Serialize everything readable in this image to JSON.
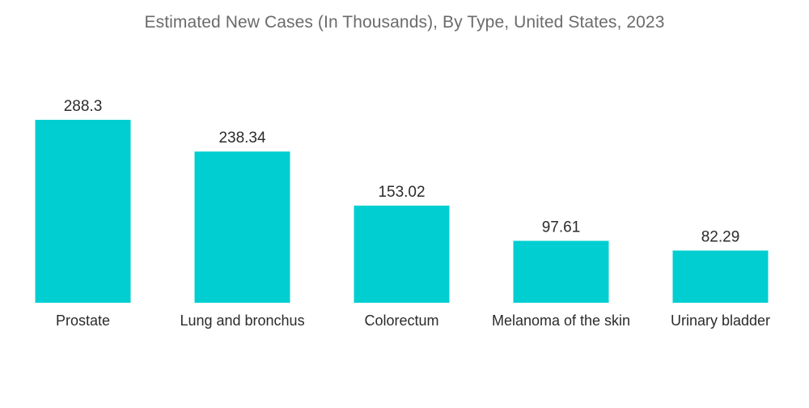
{
  "chart_data": {
    "type": "bar",
    "title": "Estimated New Cases (In Thousands), By Type, United States, 2023",
    "categories": [
      "Prostate",
      "Lung and bronchus",
      "Colorectum",
      "Melanoma of the skin",
      "Urinary bladder"
    ],
    "values": [
      288.3,
      238.34,
      153.02,
      97.61,
      82.29
    ],
    "value_labels": [
      "288.3",
      "238.34",
      "153.02",
      "97.61",
      "82.29"
    ],
    "xlabel": "",
    "ylabel": "",
    "ylim": [
      0,
      300
    ],
    "grid": false,
    "legend": "none",
    "bar_color": "#00ced1"
  }
}
